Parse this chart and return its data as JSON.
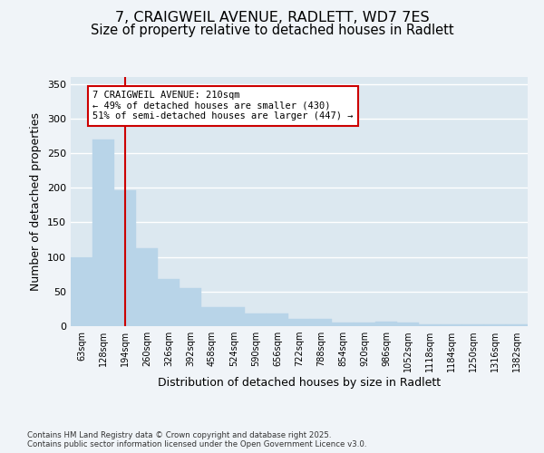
{
  "title_line1": "7, CRAIGWEIL AVENUE, RADLETT, WD7 7ES",
  "title_line2": "Size of property relative to detached houses in Radlett",
  "xlabel": "Distribution of detached houses by size in Radlett",
  "ylabel": "Number of detached properties",
  "categories": [
    "63sqm",
    "128sqm",
    "194sqm",
    "260sqm",
    "326sqm",
    "392sqm",
    "458sqm",
    "524sqm",
    "590sqm",
    "656sqm",
    "722sqm",
    "788sqm",
    "854sqm",
    "920sqm",
    "986sqm",
    "1052sqm",
    "1118sqm",
    "1184sqm",
    "1250sqm",
    "1316sqm",
    "1382sqm"
  ],
  "values": [
    100,
    270,
    197,
    113,
    68,
    55,
    27,
    27,
    18,
    18,
    10,
    10,
    5,
    5,
    7,
    5,
    2,
    2,
    3,
    3,
    2
  ],
  "bar_color": "#b8d4e8",
  "bar_edge_color": "#b8d4e8",
  "vline_x_index": 2,
  "vline_color": "#cc0000",
  "annotation_text": "7 CRAIGWEIL AVENUE: 210sqm\n← 49% of detached houses are smaller (430)\n51% of semi-detached houses are larger (447) →",
  "annotation_box_color": "#ffffff",
  "annotation_box_edge": "#cc0000",
  "ylim": [
    0,
    360
  ],
  "yticks": [
    0,
    50,
    100,
    150,
    200,
    250,
    300,
    350
  ],
  "fig_background": "#f0f4f8",
  "plot_background": "#dce8f0",
  "grid_color": "#ffffff",
  "footer_text": "Contains HM Land Registry data © Crown copyright and database right 2025.\nContains public sector information licensed under the Open Government Licence v3.0.",
  "title_fontsize": 11.5,
  "subtitle_fontsize": 10.5,
  "tick_fontsize": 7,
  "axis_label_fontsize": 9,
  "footer_fontsize": 6.2
}
